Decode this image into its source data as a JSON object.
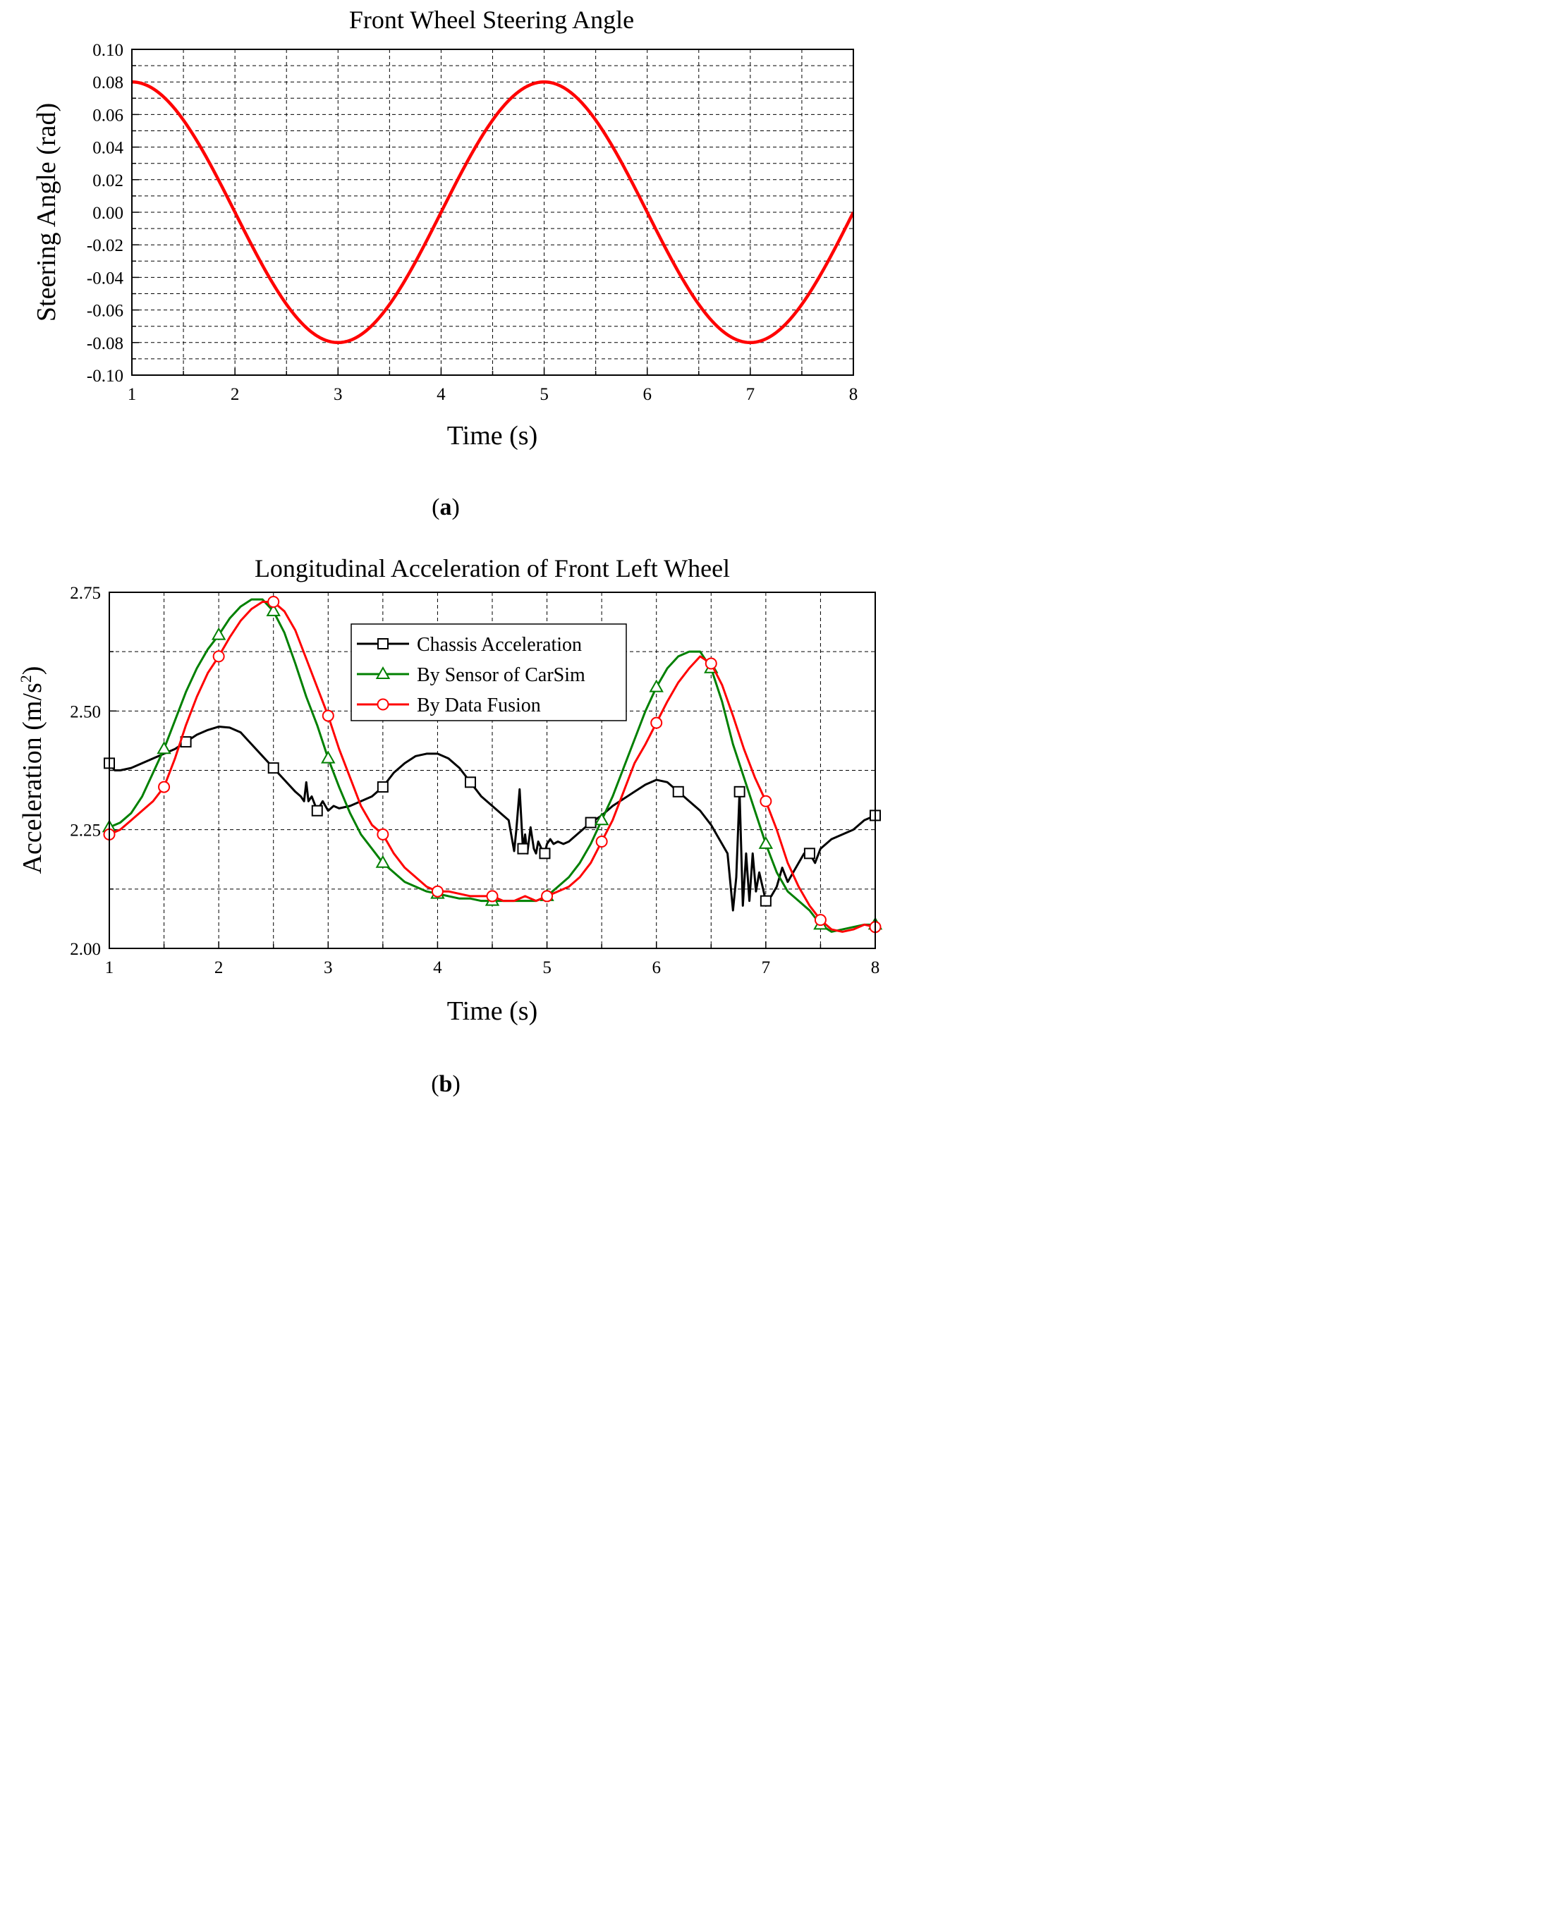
{
  "chart_data": [
    {
      "type": "line",
      "title": "Front Wheel Steering Angle",
      "xlabel": "Time (s)",
      "ylabel": "Steering Angle (rad)",
      "xlim": [
        1,
        8
      ],
      "ylim": [
        -0.1,
        0.1
      ],
      "xticks": [
        "1",
        "2",
        "3",
        "4",
        "5",
        "6",
        "7",
        "8"
      ],
      "yticks": [
        "-0.10",
        "-0.08",
        "-0.06",
        "-0.04",
        "-0.02",
        "0.00",
        "0.02",
        "0.04",
        "0.06",
        "0.08",
        "0.10"
      ],
      "grid": true,
      "caption": "(a)",
      "caption_letter": "a",
      "series": [
        {
          "name": "Steering Angle",
          "color": "#ff0000",
          "x": [
            1,
            1.25,
            1.5,
            1.75,
            2,
            2.25,
            2.5,
            2.75,
            3,
            3.25,
            3.5,
            3.75,
            4,
            4.25,
            4.5,
            4.75,
            5,
            5.25,
            5.5,
            5.75,
            6,
            6.25,
            6.5,
            6.75,
            7,
            7.25,
            7.5,
            7.75,
            8
          ],
          "values": [
            0.08,
            0.0739,
            0.0566,
            0.0306,
            0.0,
            -0.0306,
            -0.0566,
            -0.0739,
            -0.08,
            -0.0739,
            -0.0566,
            -0.0306,
            0.0,
            0.0306,
            0.0566,
            0.0739,
            0.08,
            0.0739,
            0.0566,
            0.0306,
            0.0,
            -0.0306,
            -0.0566,
            -0.0739,
            -0.08,
            -0.0739,
            -0.0566,
            -0.0306,
            0.0
          ]
        }
      ]
    },
    {
      "type": "line",
      "title": "Longitudinal Acceleration of Front Left Wheel",
      "xlabel": "Time (s)",
      "ylabel_main": "Acceleration (m/s",
      "ylabel_sup": "2",
      "ylabel_end": ")",
      "xlim": [
        1,
        8
      ],
      "ylim": [
        2.0,
        2.75
      ],
      "xticks": [
        "1",
        "2",
        "3",
        "4",
        "5",
        "6",
        "7",
        "8"
      ],
      "yticks": [
        "2.00",
        "2.25",
        "2.50",
        "2.75"
      ],
      "grid": true,
      "legend_position": "top-right",
      "caption": "(b)",
      "caption_letter": "b",
      "series": [
        {
          "name": "Chassis Acceleration",
          "color": "#000000",
          "marker": "square",
          "x": [
            1.0,
            1.05,
            1.1,
            1.2,
            1.3,
            1.4,
            1.5,
            1.6,
            1.7,
            1.8,
            1.9,
            2.0,
            2.1,
            2.2,
            2.3,
            2.4,
            2.5,
            2.6,
            2.7,
            2.75,
            2.78,
            2.8,
            2.82,
            2.85,
            2.9,
            2.95,
            3.0,
            3.05,
            3.1,
            3.2,
            3.3,
            3.4,
            3.5,
            3.6,
            3.7,
            3.8,
            3.9,
            4.0,
            4.1,
            4.2,
            4.3,
            4.4,
            4.5,
            4.6,
            4.65,
            4.7,
            4.72,
            4.75,
            4.78,
            4.8,
            4.82,
            4.85,
            4.88,
            4.9,
            4.92,
            4.95,
            4.98,
            5.0,
            5.03,
            5.06,
            5.1,
            5.15,
            5.2,
            5.3,
            5.4,
            5.5,
            5.6,
            5.7,
            5.8,
            5.9,
            6.0,
            6.1,
            6.2,
            6.3,
            6.4,
            6.5,
            6.6,
            6.65,
            6.7,
            6.73,
            6.76,
            6.79,
            6.82,
            6.85,
            6.88,
            6.91,
            6.94,
            6.97,
            7.0,
            7.05,
            7.1,
            7.15,
            7.2,
            7.25,
            7.3,
            7.35,
            7.4,
            7.45,
            7.5,
            7.55,
            7.6,
            7.7,
            7.8,
            7.9,
            8.0
          ],
          "values": [
            2.39,
            2.375,
            2.375,
            2.38,
            2.39,
            2.4,
            2.41,
            2.42,
            2.435,
            2.45,
            2.46,
            2.467,
            2.465,
            2.455,
            2.43,
            2.405,
            2.38,
            2.355,
            2.33,
            2.32,
            2.31,
            2.35,
            2.31,
            2.32,
            2.29,
            2.31,
            2.29,
            2.3,
            2.295,
            2.3,
            2.31,
            2.32,
            2.34,
            2.37,
            2.39,
            2.405,
            2.41,
            2.41,
            2.4,
            2.38,
            2.35,
            2.32,
            2.3,
            2.28,
            2.27,
            2.205,
            2.25,
            2.335,
            2.21,
            2.24,
            2.2,
            2.255,
            2.21,
            2.2,
            2.225,
            2.21,
            2.2,
            2.22,
            2.23,
            2.22,
            2.225,
            2.22,
            2.225,
            2.245,
            2.265,
            2.28,
            2.3,
            2.315,
            2.33,
            2.345,
            2.355,
            2.35,
            2.33,
            2.31,
            2.29,
            2.26,
            2.22,
            2.2,
            2.08,
            2.15,
            2.33,
            2.09,
            2.2,
            2.1,
            2.2,
            2.12,
            2.16,
            2.13,
            2.1,
            2.11,
            2.13,
            2.17,
            2.14,
            2.16,
            2.18,
            2.2,
            2.2,
            2.18,
            2.21,
            2.22,
            2.23,
            2.24,
            2.25,
            2.27,
            2.28
          ]
        },
        {
          "name": "By Sensor of CarSim",
          "color": "#008000",
          "marker": "triangle",
          "x": [
            1.0,
            1.1,
            1.2,
            1.3,
            1.4,
            1.5,
            1.6,
            1.7,
            1.8,
            1.9,
            2.0,
            2.1,
            2.2,
            2.3,
            2.4,
            2.5,
            2.6,
            2.7,
            2.8,
            2.9,
            3.0,
            3.1,
            3.2,
            3.3,
            3.4,
            3.5,
            3.6,
            3.7,
            3.8,
            3.9,
            4.0,
            4.1,
            4.2,
            4.3,
            4.4,
            4.5,
            4.6,
            4.7,
            4.8,
            4.9,
            5.0,
            5.1,
            5.2,
            5.3,
            5.4,
            5.5,
            5.6,
            5.7,
            5.8,
            5.9,
            6.0,
            6.1,
            6.2,
            6.3,
            6.4,
            6.5,
            6.6,
            6.7,
            6.8,
            6.9,
            7.0,
            7.1,
            7.2,
            7.3,
            7.4,
            7.5,
            7.6,
            7.7,
            7.8,
            7.9,
            8.0
          ],
          "values": [
            2.255,
            2.265,
            2.285,
            2.32,
            2.37,
            2.42,
            2.48,
            2.54,
            2.59,
            2.63,
            2.66,
            2.695,
            2.72,
            2.735,
            2.735,
            2.71,
            2.665,
            2.6,
            2.53,
            2.47,
            2.4,
            2.34,
            2.285,
            2.24,
            2.21,
            2.18,
            2.16,
            2.14,
            2.13,
            2.12,
            2.115,
            2.11,
            2.105,
            2.105,
            2.1,
            2.1,
            2.1,
            2.1,
            2.1,
            2.1,
            2.11,
            2.13,
            2.15,
            2.18,
            2.22,
            2.27,
            2.32,
            2.38,
            2.44,
            2.5,
            2.55,
            2.59,
            2.615,
            2.625,
            2.625,
            2.59,
            2.52,
            2.43,
            2.36,
            2.29,
            2.22,
            2.16,
            2.12,
            2.1,
            2.08,
            2.05,
            2.035,
            2.04,
            2.045,
            2.05,
            2.05
          ]
        },
        {
          "name": "By Data Fusion",
          "color": "#ff0000",
          "marker": "circle",
          "x": [
            1.0,
            1.1,
            1.2,
            1.3,
            1.4,
            1.5,
            1.6,
            1.7,
            1.8,
            1.9,
            2.0,
            2.1,
            2.2,
            2.3,
            2.4,
            2.5,
            2.6,
            2.7,
            2.8,
            2.9,
            3.0,
            3.1,
            3.2,
            3.3,
            3.4,
            3.5,
            3.6,
            3.7,
            3.8,
            3.9,
            4.0,
            4.1,
            4.2,
            4.3,
            4.4,
            4.5,
            4.6,
            4.7,
            4.8,
            4.9,
            5.0,
            5.1,
            5.2,
            5.3,
            5.4,
            5.5,
            5.6,
            5.7,
            5.8,
            5.9,
            6.0,
            6.1,
            6.2,
            6.3,
            6.4,
            6.5,
            6.6,
            6.7,
            6.8,
            6.9,
            7.0,
            7.1,
            7.2,
            7.3,
            7.4,
            7.5,
            7.6,
            7.7,
            7.8,
            7.9,
            8.0
          ],
          "values": [
            2.24,
            2.25,
            2.27,
            2.29,
            2.31,
            2.34,
            2.4,
            2.47,
            2.53,
            2.58,
            2.615,
            2.655,
            2.69,
            2.715,
            2.73,
            2.73,
            2.71,
            2.67,
            2.61,
            2.55,
            2.49,
            2.42,
            2.36,
            2.3,
            2.26,
            2.24,
            2.2,
            2.17,
            2.15,
            2.13,
            2.12,
            2.12,
            2.115,
            2.11,
            2.11,
            2.11,
            2.1,
            2.1,
            2.11,
            2.1,
            2.11,
            2.12,
            2.13,
            2.15,
            2.18,
            2.225,
            2.27,
            2.33,
            2.39,
            2.43,
            2.475,
            2.52,
            2.56,
            2.59,
            2.615,
            2.6,
            2.555,
            2.49,
            2.42,
            2.36,
            2.31,
            2.25,
            2.18,
            2.13,
            2.09,
            2.06,
            2.04,
            2.035,
            2.04,
            2.05,
            2.045
          ]
        }
      ]
    }
  ]
}
